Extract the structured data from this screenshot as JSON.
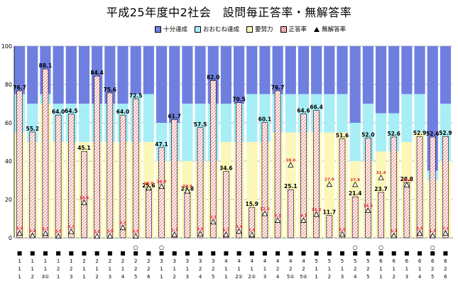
{
  "title": "平成25年度中2社会　設問毎正答率・無解答率",
  "colors": {
    "fully": "#6f7fe0",
    "mostly": "#a8eef6",
    "effort": "#fbf7b8",
    "correct_hatch": "#e4474f",
    "plot_bg": "#ffffff",
    "grid": "#000000"
  },
  "legend": [
    {
      "label": "十分達成",
      "kind": "fully"
    },
    {
      "label": "おおむね達成",
      "kind": "mostly"
    },
    {
      "label": "要努力",
      "kind": "effort"
    },
    {
      "label": "正答率",
      "kind": "correct"
    },
    {
      "label": "無解答率",
      "kind": "noanswer"
    }
  ],
  "chart_data": {
    "type": "bar",
    "ylim": [
      0,
      100
    ],
    "yticks": [
      0,
      20,
      40,
      60,
      80,
      100
    ],
    "categories": [
      "1-1-1",
      "1-1-2",
      "1-1-3①",
      "1-2-1",
      "1-2-3",
      "2-1-1",
      "2-1-2",
      "2-1-3",
      "2-1-4",
      "2-2-5",
      "2-2-6",
      "3-1-1",
      "3-1-2",
      "3-1-3",
      "3-2-4",
      "3-2-5",
      "4-1-1",
      "4-1-2①",
      "4-1-2②",
      "4-1-3",
      "4-2-4",
      "4-2-5①",
      "4-2-5②",
      "5-1-1",
      "5-1-2",
      "5-1-3",
      "5-2-4",
      "5-2-5",
      "6-1-1",
      "6-1-2",
      "6-1-3",
      "6-1-4",
      "6-2-5",
      "6-2-6"
    ],
    "circle_marks": [
      false,
      false,
      false,
      false,
      false,
      false,
      false,
      false,
      false,
      true,
      false,
      true,
      false,
      false,
      false,
      false,
      false,
      false,
      false,
      false,
      false,
      false,
      false,
      false,
      false,
      false,
      true,
      false,
      true,
      false,
      false,
      false,
      true,
      false
    ],
    "criteria_effort_upper": [
      55,
      50,
      70,
      50,
      50,
      50,
      50,
      50,
      50,
      50,
      50,
      40,
      40,
      40,
      40,
      40,
      50,
      50,
      50,
      50,
      55,
      55,
      55,
      55,
      55,
      55,
      40,
      40,
      45,
      45,
      50,
      55,
      30,
      40
    ],
    "criteria_mostly_upper": [
      75,
      70,
      75,
      70,
      70,
      70,
      70,
      70,
      70,
      75,
      75,
      60,
      60,
      70,
      70,
      70,
      70,
      70,
      75,
      75,
      75,
      75,
      75,
      75,
      75,
      75,
      60,
      70,
      65,
      65,
      75,
      75,
      35,
      70
    ],
    "correct_rate": [
      76.7,
      55.2,
      88.1,
      64.0,
      64.5,
      45.1,
      84.4,
      75.6,
      64.0,
      72.5,
      25.6,
      47.1,
      61.7,
      23.8,
      57.5,
      82.0,
      34.6,
      70.5,
      15.9,
      60.1,
      76.7,
      25.1,
      64.6,
      66.4,
      11.7,
      51.6,
      21.4,
      52.0,
      23.7,
      52.6,
      28.8,
      52.9,
      52.6,
      52.9
    ],
    "no_answer_rate": [
      2.4,
      1.1,
      2.3,
      0.9,
      3.3,
      18.4,
      0.8,
      0.9,
      5.3,
      0.9,
      26.0,
      26.8,
      1.7,
      24.4,
      2.0,
      8.3,
      1.7,
      3.4,
      1.6,
      12.6,
      9.1,
      38.0,
      9.1,
      12.2,
      27.9,
      1.9,
      27.8,
      14.2,
      31.4,
      1.1,
      27.6,
      2.4,
      1.1,
      2.4
    ],
    "correct_labels": [
      "76.7",
      "55.2",
      "88.1",
      "64.0",
      "64.5",
      "45.1",
      "84.4",
      "75.6",
      "64.0",
      "72.5",
      "25.6",
      "47.1",
      "61.7",
      "23.8",
      "57.5",
      "82.0",
      "34.6",
      "70.5",
      "15.9",
      "60.1",
      "76.7",
      "25.1",
      "64.6",
      "66.4",
      "11.7",
      "51.6",
      "21.4",
      "52.0",
      "23.7",
      "52.6",
      "28.8",
      "52.9",
      "52.6",
      "52.9"
    ],
    "no_answer_labels": [
      "2.4",
      "1.1",
      "2.3",
      "0.9",
      "3.3",
      "18.4",
      "0.8",
      "0.9",
      "5.3",
      "0.9",
      "26.0",
      "26.8",
      "1.7",
      "24.4",
      "2.0",
      "8.3",
      "1.7",
      "3.4",
      "1.6",
      "12.6",
      "9.1",
      "38.0",
      "9.1",
      "12.2",
      "27.9",
      "1.9",
      "27.8",
      "14.2",
      "31.4",
      "1.1",
      "27.6",
      "2.4",
      "1.1",
      "2.4"
    ]
  }
}
